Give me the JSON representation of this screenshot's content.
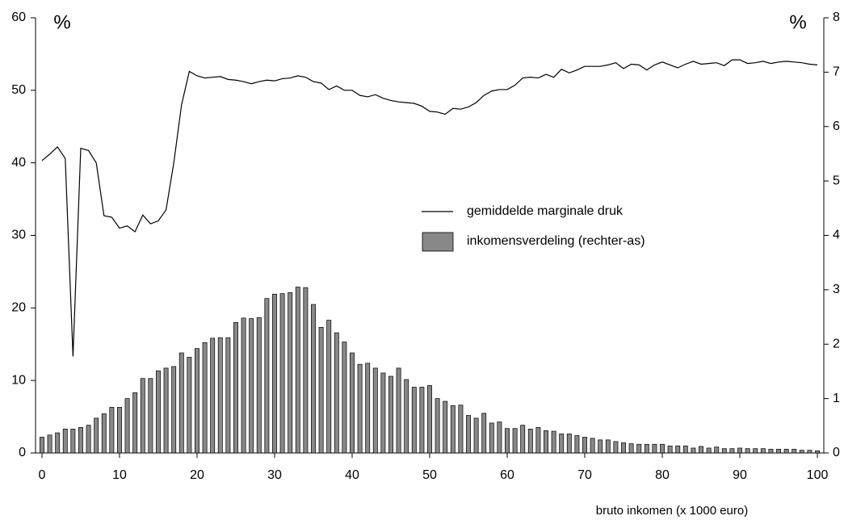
{
  "chart_data": {
    "type": "combo",
    "y_unit_label": "%",
    "y2_unit_label": "%",
    "x_label": "bruto inkomen (x 1000 euro)",
    "x": [
      0,
      1,
      2,
      3,
      4,
      5,
      6,
      7,
      8,
      9,
      10,
      11,
      12,
      13,
      14,
      15,
      16,
      17,
      18,
      19,
      20,
      21,
      22,
      23,
      24,
      25,
      26,
      27,
      28,
      29,
      30,
      31,
      32,
      33,
      34,
      35,
      36,
      37,
      38,
      39,
      40,
      41,
      42,
      43,
      44,
      45,
      46,
      47,
      48,
      49,
      50,
      51,
      52,
      53,
      54,
      55,
      56,
      57,
      58,
      59,
      60,
      61,
      62,
      63,
      64,
      65,
      66,
      67,
      68,
      69,
      70,
      71,
      72,
      73,
      74,
      75,
      76,
      77,
      78,
      79,
      80,
      81,
      82,
      83,
      84,
      85,
      86,
      87,
      88,
      89,
      90,
      91,
      92,
      93,
      94,
      95,
      96,
      97,
      98,
      99,
      100
    ],
    "series": [
      {
        "name": "gemiddelde marginale druk",
        "type": "line",
        "color": "#000000",
        "values": [
          40.3,
          41.2,
          42.2,
          40.6,
          13.3,
          42,
          41.7,
          40,
          32.7,
          32.5,
          31,
          31.3,
          30.5,
          32.8,
          31.6,
          32,
          33.5,
          40,
          48,
          52.6,
          52,
          51.7,
          51.8,
          51.9,
          51.5,
          51.4,
          51.2,
          50.9,
          51.2,
          51.4,
          51.3,
          51.6,
          51.7,
          52,
          51.8,
          51.2,
          51,
          50.1,
          50.6,
          50,
          50,
          49.3,
          49.1,
          49.4,
          48.9,
          48.6,
          48.4,
          48.3,
          48.2,
          47.8,
          47.1,
          47,
          46.7,
          47.5,
          47.4,
          47.7,
          48.3,
          49.3,
          49.9,
          50.1,
          50.1,
          50.7,
          51.7,
          51.8,
          51.7,
          52.2,
          51.8,
          52.9,
          52.4,
          52.8,
          53.3,
          53.3,
          53.3,
          53.5,
          53.8,
          53,
          53.6,
          53.5,
          52.8,
          53.5,
          53.9,
          53.5,
          53.1,
          53.6,
          54,
          53.6,
          53.7,
          53.8,
          53.4,
          54.2,
          54.2,
          53.7,
          53.8,
          54,
          53.7,
          53.9,
          54,
          53.9,
          53.8,
          53.6,
          53.5
        ]
      },
      {
        "name": "inkomensverdeling (rechter-as)",
        "type": "bar",
        "axis": "y2",
        "color": "#888888",
        "values": [
          0.29,
          0.33,
          0.37,
          0.44,
          0.44,
          0.47,
          0.51,
          0.64,
          0.72,
          0.84,
          0.84,
          1.0,
          1.11,
          1.37,
          1.37,
          1.51,
          1.56,
          1.59,
          1.84,
          1.76,
          1.92,
          2.03,
          2.11,
          2.12,
          2.12,
          2.4,
          2.48,
          2.47,
          2.49,
          2.84,
          2.92,
          2.93,
          2.95,
          3.05,
          3.04,
          2.73,
          2.31,
          2.44,
          2.21,
          2.04,
          1.84,
          1.63,
          1.65,
          1.56,
          1.47,
          1.41,
          1.56,
          1.35,
          1.21,
          1.21,
          1.24,
          1.0,
          0.95,
          0.87,
          0.88,
          0.69,
          0.64,
          0.73,
          0.55,
          0.57,
          0.45,
          0.45,
          0.51,
          0.44,
          0.47,
          0.41,
          0.4,
          0.35,
          0.35,
          0.32,
          0.29,
          0.27,
          0.24,
          0.24,
          0.21,
          0.19,
          0.17,
          0.16,
          0.16,
          0.16,
          0.16,
          0.13,
          0.13,
          0.13,
          0.09,
          0.12,
          0.09,
          0.11,
          0.08,
          0.08,
          0.09,
          0.08,
          0.08,
          0.08,
          0.07,
          0.07,
          0.07,
          0.07,
          0.05,
          0.05,
          0.04
        ]
      }
    ],
    "xlim": [
      -0.83,
      100.83
    ],
    "xticks": [
      0,
      10,
      20,
      30,
      40,
      50,
      60,
      70,
      80,
      90,
      100
    ],
    "ylim": [
      0,
      60
    ],
    "yticks": [
      0,
      10,
      20,
      30,
      40,
      50,
      60
    ],
    "y2lim": [
      0,
      8
    ],
    "y2ticks": [
      0,
      1,
      2,
      3,
      4,
      5,
      6,
      7,
      8
    ],
    "grid": false
  }
}
